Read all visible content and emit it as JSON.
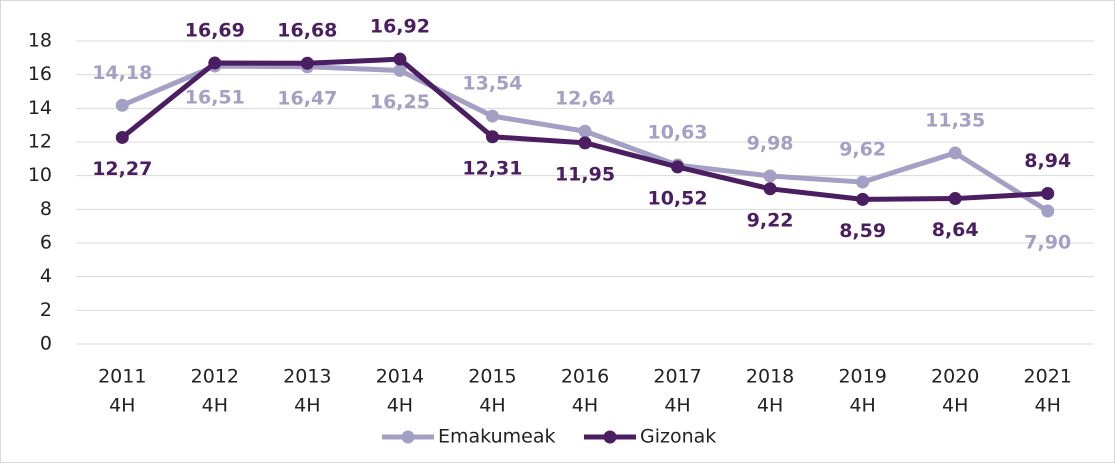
{
  "chart_data": {
    "type": "line",
    "categories": [
      [
        "2011",
        "4H"
      ],
      [
        "2012",
        "4H"
      ],
      [
        "2013",
        "4H"
      ],
      [
        "2014",
        "4H"
      ],
      [
        "2015",
        "4H"
      ],
      [
        "2016",
        "4H"
      ],
      [
        "2017",
        "4H"
      ],
      [
        "2018",
        "4H"
      ],
      [
        "2019",
        "4H"
      ],
      [
        "2020",
        "4H"
      ],
      [
        "2021",
        "4H"
      ]
    ],
    "series": [
      {
        "name": "Emakumeak",
        "color": "#a49fc4",
        "values": [
          14.18,
          16.51,
          16.47,
          16.25,
          13.54,
          12.64,
          10.63,
          9.98,
          9.62,
          11.35,
          7.9
        ],
        "value_labels": [
          "14,18",
          "16,51",
          "16,47",
          "16,25",
          "13,54",
          "12,64",
          "10,63",
          "9,98",
          "9,62",
          "11,35",
          "7,90"
        ]
      },
      {
        "name": "Gizonak",
        "color": "#4b1d61",
        "values": [
          12.27,
          16.69,
          16.68,
          16.92,
          12.31,
          11.95,
          10.52,
          9.22,
          8.59,
          8.64,
          8.94
        ],
        "value_labels": [
          "12,27",
          "16,69",
          "16,68",
          "16,92",
          "12,31",
          "11,95",
          "10,52",
          "9,22",
          "8,59",
          "8,64",
          "8,94"
        ]
      }
    ],
    "ylim": [
      0,
      18
    ],
    "yticks": [
      0,
      2,
      4,
      6,
      8,
      10,
      12,
      14,
      16,
      18
    ],
    "grid": true,
    "legend": "bottom"
  }
}
